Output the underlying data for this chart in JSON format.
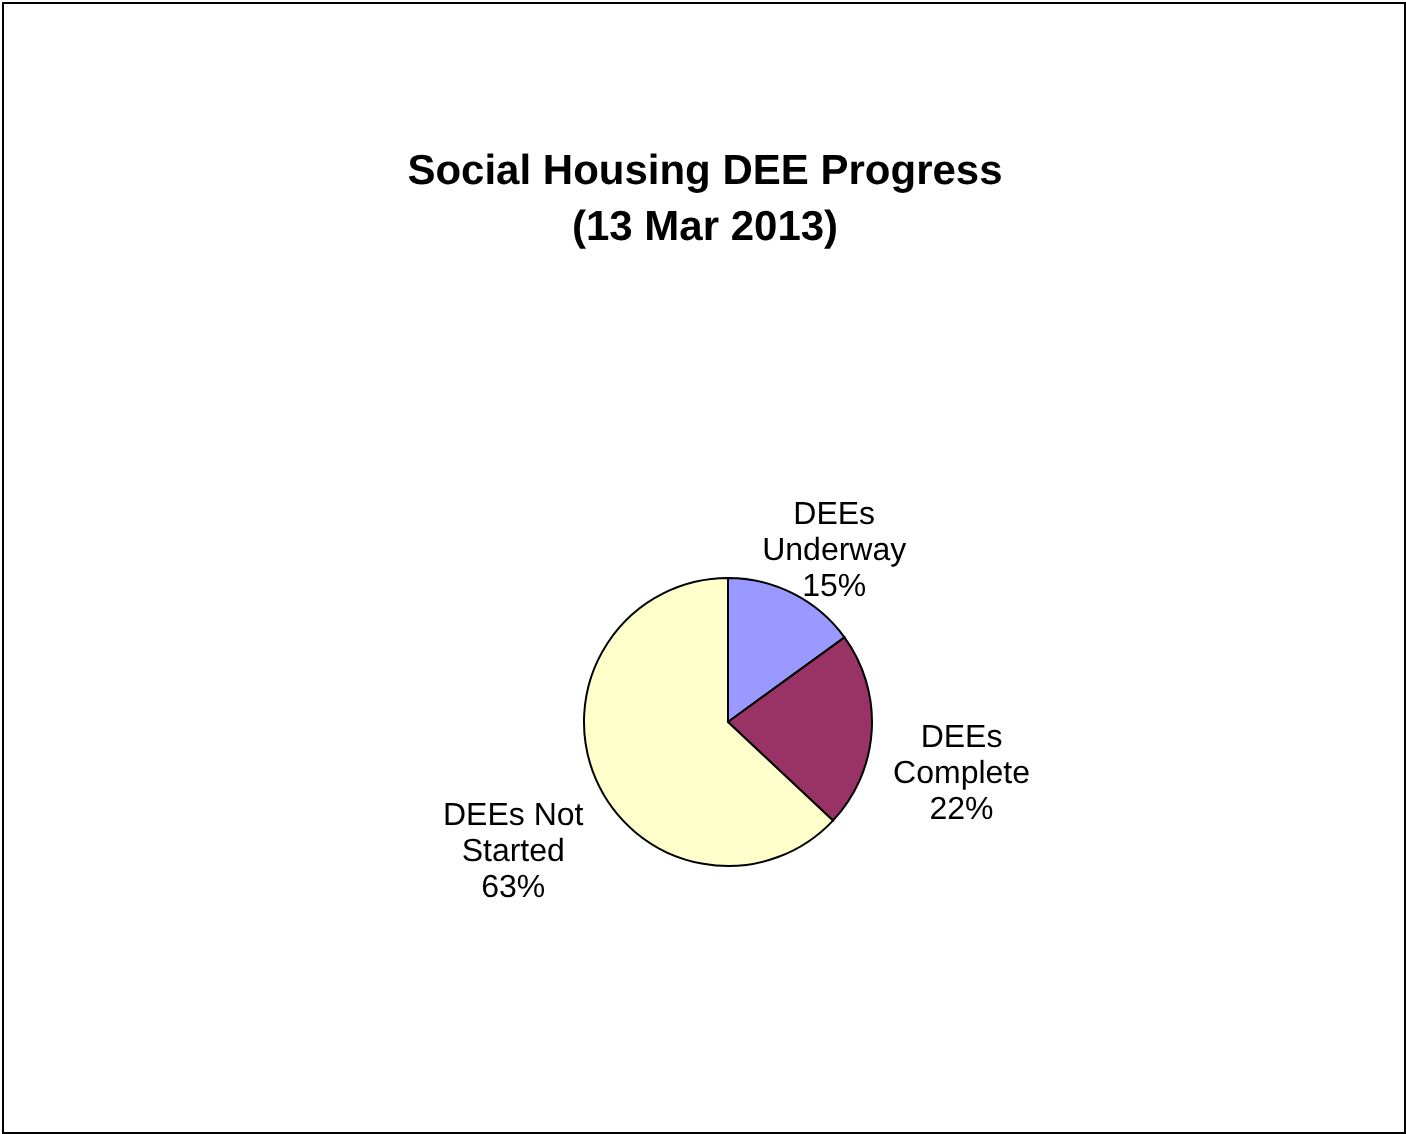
{
  "chart_data": {
    "type": "pie",
    "title": "Social Housing DEE Progress",
    "subtitle": "(13 Mar 2013)",
    "categories": [
      "DEEs Underway",
      "DEEs Complete",
      "DEEs Not Started"
    ],
    "values": [
      15,
      22,
      63
    ],
    "colors": [
      "#9999ff",
      "#993366",
      "#ffffcc"
    ],
    "value_labels": [
      "15%",
      "22%",
      "63%"
    ]
  }
}
